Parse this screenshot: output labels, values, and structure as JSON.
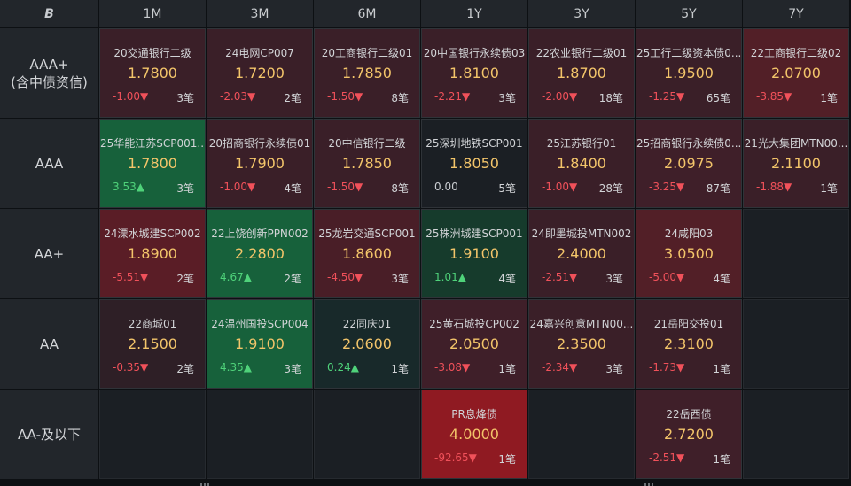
{
  "logo": "B",
  "columns": [
    "1M",
    "3M",
    "6M",
    "1Y",
    "3Y",
    "5Y",
    "7Y"
  ],
  "rows": [
    "AAA+\n(含中债资信)",
    "AAA",
    "AA+",
    "AA",
    "AA-及以下"
  ],
  "cells": [
    [
      {
        "name": "20交通银行二级",
        "price": "1.7800",
        "chg": "-1.00▼",
        "dir": "down",
        "count": "3笔",
        "bg": "#3a1f28"
      },
      {
        "name": "24电网CP007",
        "price": "1.7200",
        "chg": "-2.03▼",
        "dir": "down",
        "count": "2笔",
        "bg": "#3a1f28"
      },
      {
        "name": "20工商银行二级01",
        "price": "1.7850",
        "chg": "-1.50▼",
        "dir": "down",
        "count": "8笔",
        "bg": "#3a1f28"
      },
      {
        "name": "20中国银行永续债03",
        "price": "1.8100",
        "chg": "-2.21▼",
        "dir": "down",
        "count": "3笔",
        "bg": "#3a1f28"
      },
      {
        "name": "22农业银行二级01",
        "price": "1.8700",
        "chg": "-2.00▼",
        "dir": "down",
        "count": "18笔",
        "bg": "#3a1f28"
      },
      {
        "name": "25工行二级资本债0...",
        "price": "1.9500",
        "chg": "-1.25▼",
        "dir": "down",
        "count": "65笔",
        "bg": "#3a1f28"
      },
      {
        "name": "22工商银行二级02",
        "price": "2.0700",
        "chg": "-3.85▼",
        "dir": "down",
        "count": "1笔",
        "bg": "#521f27"
      }
    ],
    [
      {
        "name": "25华能江苏SCP001...",
        "price": "1.7800",
        "chg": "3.53▲",
        "dir": "up",
        "count": "3笔",
        "bg": "#17613b"
      },
      {
        "name": "20招商银行永续债01",
        "price": "1.7900",
        "chg": "-1.00▼",
        "dir": "down",
        "count": "4笔",
        "bg": "#3a1f28"
      },
      {
        "name": "20中信银行二级",
        "price": "1.7850",
        "chg": "-1.50▼",
        "dir": "down",
        "count": "8笔",
        "bg": "#3a1f28"
      },
      {
        "name": "25深圳地铁SCP001",
        "price": "1.8050",
        "chg": "0.00",
        "dir": "flat",
        "count": "5笔",
        "bg": "#1b1f24"
      },
      {
        "name": "25江苏银行01",
        "price": "1.8400",
        "chg": "-1.00▼",
        "dir": "down",
        "count": "28笔",
        "bg": "#3a1f28"
      },
      {
        "name": "25招商银行永续债0...",
        "price": "2.0975",
        "chg": "-3.25▼",
        "dir": "down",
        "count": "87笔",
        "bg": "#3f1f29"
      },
      {
        "name": "21光大集团MTN00...",
        "price": "2.1100",
        "chg": "-1.88▼",
        "dir": "down",
        "count": "1笔",
        "bg": "#3a1f28"
      }
    ],
    [
      {
        "name": "24溧水城建SCP002",
        "price": "1.8900",
        "chg": "-5.51▼",
        "dir": "down",
        "count": "2笔",
        "bg": "#5a1d26"
      },
      {
        "name": "22上饶创新PPN002",
        "price": "2.2800",
        "chg": "4.67▲",
        "dir": "up",
        "count": "2笔",
        "bg": "#17613b"
      },
      {
        "name": "25龙岩交通SCP001",
        "price": "1.8600",
        "chg": "-4.50▼",
        "dir": "down",
        "count": "3笔",
        "bg": "#491e27"
      },
      {
        "name": "25株洲城建SCP001",
        "price": "1.9100",
        "chg": "1.01▲",
        "dir": "up",
        "count": "4笔",
        "bg": "#163b2c"
      },
      {
        "name": "24即墨城投MTN002",
        "price": "2.4000",
        "chg": "-2.51▼",
        "dir": "down",
        "count": "3笔",
        "bg": "#3a1f28"
      },
      {
        "name": "24咸阳03",
        "price": "3.0500",
        "chg": "-5.00▼",
        "dir": "down",
        "count": "4笔",
        "bg": "#521f27"
      },
      null
    ],
    [
      {
        "name": "22商城01",
        "price": "2.1500",
        "chg": "-0.35▼",
        "dir": "down",
        "count": "2笔",
        "bg": "#2e1f26"
      },
      {
        "name": "24温州国投SCP004",
        "price": "1.9100",
        "chg": "4.35▲",
        "dir": "up",
        "count": "3笔",
        "bg": "#17613b"
      },
      {
        "name": "22同庆01",
        "price": "2.0600",
        "chg": "0.24▲",
        "dir": "up",
        "count": "1笔",
        "bg": "#18292a"
      },
      {
        "name": "25黄石城投CP002",
        "price": "2.0500",
        "chg": "-3.08▼",
        "dir": "down",
        "count": "1笔",
        "bg": "#3f1f29"
      },
      {
        "name": "24嘉兴创意MTN00...",
        "price": "2.3500",
        "chg": "-2.34▼",
        "dir": "down",
        "count": "3笔",
        "bg": "#3a1f28"
      },
      {
        "name": "21岳阳交投01",
        "price": "2.3100",
        "chg": "-1.73▼",
        "dir": "down",
        "count": "1笔",
        "bg": "#3a1f28"
      },
      null
    ],
    [
      null,
      null,
      null,
      {
        "name": "PR息烽债",
        "price": "4.0000",
        "chg": "-92.65▼",
        "dir": "down",
        "count": "1笔",
        "bg": "#8f1a22"
      },
      null,
      {
        "name": "22岳西债",
        "price": "2.7200",
        "chg": "-2.51▼",
        "dir": "down",
        "count": "1笔",
        "bg": "#3f1f29"
      },
      null
    ]
  ]
}
